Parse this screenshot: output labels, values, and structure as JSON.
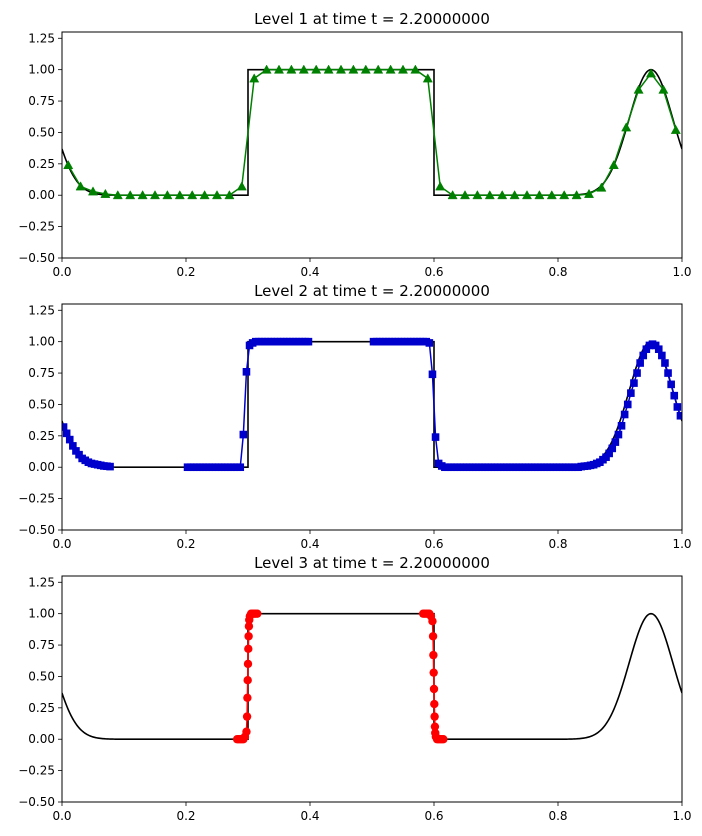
{
  "figure": {
    "background": "#ffffff"
  },
  "chart_data": [
    {
      "type": "line",
      "title": "Level 1 at time t =      2.20000000",
      "xlim": [
        0,
        1
      ],
      "ylim": [
        -0.5,
        1.3
      ],
      "xticks": [
        0,
        0.2,
        0.4,
        0.6,
        0.8,
        1.0
      ],
      "xtick_labels": [
        "0.0",
        "0.2",
        "0.4",
        "0.6",
        "0.8",
        "1.0"
      ],
      "yticks": [
        -0.5,
        -0.25,
        0,
        0.25,
        0.5,
        0.75,
        1.0,
        1.25
      ],
      "ytick_labels": [
        "−0.50",
        "−0.25",
        "0.00",
        "0.25",
        "0.50",
        "0.75",
        "1.00",
        "1.25"
      ],
      "grid": false,
      "exact_solution": {
        "color": "#000000",
        "marker": "none"
      },
      "series": [
        {
          "color": "#008000",
          "marker": "triangle",
          "connected": true,
          "x": [
            0.01,
            0.03,
            0.05,
            0.07,
            0.09,
            0.11,
            0.13,
            0.15,
            0.17,
            0.19,
            0.21,
            0.23,
            0.25,
            0.27,
            0.29,
            0.31,
            0.33,
            0.35,
            0.37,
            0.39,
            0.41,
            0.43,
            0.45,
            0.47,
            0.49,
            0.51,
            0.53,
            0.55,
            0.57,
            0.59,
            0.61,
            0.63,
            0.65,
            0.67,
            0.69,
            0.71,
            0.73,
            0.75,
            0.77,
            0.79,
            0.81,
            0.83,
            0.85,
            0.87,
            0.89,
            0.91,
            0.93,
            0.95,
            0.97,
            0.99
          ],
          "y": [
            0.24,
            0.07,
            0.03,
            0.01,
            0.0,
            0.0,
            0.0,
            0.0,
            0.0,
            0.0,
            0.0,
            0.0,
            0.0,
            0.0,
            0.07,
            0.93,
            1.0,
            1.0,
            1.0,
            1.0,
            1.0,
            1.0,
            1.0,
            1.0,
            1.0,
            1.0,
            1.0,
            1.0,
            1.0,
            0.93,
            0.07,
            0.0,
            0.0,
            0.0,
            0.0,
            0.0,
            0.0,
            0.0,
            0.0,
            0.0,
            0.0,
            0.0,
            0.01,
            0.06,
            0.24,
            0.54,
            0.84,
            0.97,
            0.84,
            0.52
          ]
        }
      ]
    },
    {
      "type": "line",
      "title": "Level 2 at time t =      2.20000000",
      "xlim": [
        0,
        1
      ],
      "ylim": [
        -0.5,
        1.3
      ],
      "xticks": [
        0,
        0.2,
        0.4,
        0.6,
        0.8,
        1.0
      ],
      "xtick_labels": [
        "0.0",
        "0.2",
        "0.4",
        "0.6",
        "0.8",
        "1.0"
      ],
      "yticks": [
        -0.5,
        -0.25,
        0,
        0.25,
        0.5,
        0.75,
        1.0,
        1.25
      ],
      "ytick_labels": [
        "−0.50",
        "−0.25",
        "0.00",
        "0.25",
        "0.50",
        "0.75",
        "1.00",
        "1.25"
      ],
      "grid": false,
      "exact_solution": {
        "color": "#000000",
        "marker": "none"
      },
      "series": [
        {
          "color": "#0000cc",
          "marker": "square",
          "connected": true,
          "segments": [
            {
              "x": [
                0.0025,
                0.0075,
                0.0125,
                0.0175,
                0.0225,
                0.0275,
                0.0325,
                0.0375,
                0.0425,
                0.0475,
                0.0525,
                0.0575,
                0.0625,
                0.0675,
                0.0725,
                0.0775
              ],
              "y": [
                0.32,
                0.27,
                0.22,
                0.17,
                0.13,
                0.1,
                0.07,
                0.055,
                0.04,
                0.03,
                0.025,
                0.02,
                0.015,
                0.01,
                0.008,
                0.005
              ]
            },
            {
              "x": [
                0.2025,
                0.2075,
                0.2125,
                0.2175,
                0.2225,
                0.2275,
                0.2325,
                0.2375,
                0.2425,
                0.2475,
                0.2525,
                0.2575,
                0.2625,
                0.2675,
                0.2725,
                0.2775,
                0.2825,
                0.2875,
                0.2925,
                0.2975,
                0.3025,
                0.3075,
                0.3125,
                0.3175,
                0.3225,
                0.3275,
                0.3325,
                0.3375,
                0.3425,
                0.3475,
                0.3525,
                0.3575,
                0.3625,
                0.3675,
                0.3725,
                0.3775,
                0.3825,
                0.3875,
                0.3925,
                0.3975
              ],
              "y": [
                0,
                0,
                0,
                0,
                0,
                0,
                0,
                0,
                0,
                0,
                0,
                0,
                0,
                0,
                0,
                0,
                0,
                0,
                0.26,
                0.76,
                0.97,
                0.99,
                1,
                1,
                1,
                1,
                1,
                1,
                1,
                1,
                1,
                1,
                1,
                1,
                1,
                1,
                1,
                1,
                1,
                1
              ]
            },
            {
              "x": [
                0.5025,
                0.5075,
                0.5125,
                0.5175,
                0.5225,
                0.5275,
                0.5325,
                0.5375,
                0.5425,
                0.5475,
                0.5525,
                0.5575,
                0.5625,
                0.5675,
                0.5725,
                0.5775,
                0.5825,
                0.5875,
                0.5925,
                0.5975,
                0.6025,
                0.6075,
                0.6125,
                0.6175,
                0.6225,
                0.6275,
                0.6325,
                0.6375,
                0.6425,
                0.6475,
                0.6525,
                0.6575,
                0.6625,
                0.6675,
                0.6725,
                0.6775,
                0.6825,
                0.6875,
                0.6925,
                0.6975,
                0.7025,
                0.7075,
                0.7125,
                0.7175,
                0.7225,
                0.7275,
                0.7325,
                0.7375,
                0.7425,
                0.7475,
                0.7525,
                0.7575,
                0.7625,
                0.7675,
                0.7725,
                0.7775,
                0.7825,
                0.7875,
                0.7925,
                0.7975,
                0.8025,
                0.8075,
                0.8125,
                0.8175,
                0.8225,
                0.8275,
                0.8325,
                0.8375,
                0.8425,
                0.8475,
                0.8525,
                0.8575,
                0.8625,
                0.8675,
                0.8725,
                0.8775,
                0.8825,
                0.8875,
                0.8925,
                0.8975,
                0.9025,
                0.9075,
                0.9125,
                0.9175,
                0.9225,
                0.9275,
                0.9325,
                0.9375,
                0.9425,
                0.9475,
                0.9525,
                0.9575,
                0.9625,
                0.9675,
                0.9725,
                0.9775,
                0.9825,
                0.9875,
                0.9925,
                0.9975
              ],
              "y": [
                1,
                1,
                1,
                1,
                1,
                1,
                1,
                1,
                1,
                1,
                1,
                1,
                1,
                1,
                1,
                1,
                1,
                1,
                0.99,
                0.74,
                0.24,
                0.03,
                0.01,
                0,
                0,
                0,
                0,
                0,
                0,
                0,
                0,
                0,
                0,
                0,
                0,
                0,
                0,
                0,
                0,
                0,
                0,
                0,
                0,
                0,
                0,
                0,
                0,
                0,
                0,
                0,
                0,
                0,
                0,
                0,
                0,
                0,
                0,
                0,
                0,
                0,
                0,
                0,
                0,
                0,
                0,
                0,
                0,
                0.005,
                0.008,
                0.01,
                0.015,
                0.02,
                0.03,
                0.04,
                0.06,
                0.08,
                0.11,
                0.15,
                0.2,
                0.26,
                0.33,
                0.42,
                0.5,
                0.59,
                0.67,
                0.75,
                0.83,
                0.89,
                0.94,
                0.97,
                0.98,
                0.97,
                0.94,
                0.89,
                0.83,
                0.75,
                0.66,
                0.57,
                0.48,
                0.41
              ]
            }
          ]
        }
      ]
    },
    {
      "type": "line",
      "title": "Level 3 at time t =      2.20000000",
      "xlim": [
        0,
        1
      ],
      "ylim": [
        -0.5,
        1.3
      ],
      "xticks": [
        0,
        0.2,
        0.4,
        0.6,
        0.8,
        1.0
      ],
      "xtick_labels": [
        "0.0",
        "0.2",
        "0.4",
        "0.6",
        "0.8",
        "1.0"
      ],
      "yticks": [
        -0.5,
        -0.25,
        0,
        0.25,
        0.5,
        0.75,
        1.0,
        1.25
      ],
      "ytick_labels": [
        "−0.50",
        "−0.25",
        "0.00",
        "0.25",
        "0.50",
        "0.75",
        "1.00",
        "1.25"
      ],
      "grid": false,
      "exact_solution": {
        "color": "#000000",
        "marker": "none"
      },
      "series": [
        {
          "color": "#ff0000",
          "marker": "circle",
          "connected": true,
          "segments": [
            {
              "x": [
                0.2825,
                0.285,
                0.2875,
                0.29,
                0.2925,
                0.295,
                0.2975,
                0.2985,
                0.299,
                0.2995,
                0.3,
                0.3005,
                0.301,
                0.3015,
                0.302,
                0.303,
                0.305,
                0.3075,
                0.31,
                0.3125,
                0.315
              ],
              "y": [
                0,
                0,
                0,
                0,
                0,
                0.02,
                0.06,
                0.18,
                0.33,
                0.47,
                0.6,
                0.72,
                0.82,
                0.9,
                0.95,
                0.98,
                1,
                1,
                1,
                1,
                1
              ]
            },
            {
              "x": [
                0.5825,
                0.585,
                0.5875,
                0.59,
                0.5925,
                0.595,
                0.5975,
                0.5985,
                0.599,
                0.5995,
                0.6,
                0.6005,
                0.601,
                0.6015,
                0.602,
                0.603,
                0.605,
                0.6075,
                0.61,
                0.6125,
                0.615
              ],
              "y": [
                1,
                1,
                1,
                1,
                1,
                0.98,
                0.94,
                0.82,
                0.67,
                0.53,
                0.4,
                0.28,
                0.18,
                0.1,
                0.05,
                0.02,
                0,
                0,
                0,
                0,
                0
              ]
            }
          ]
        }
      ]
    }
  ]
}
